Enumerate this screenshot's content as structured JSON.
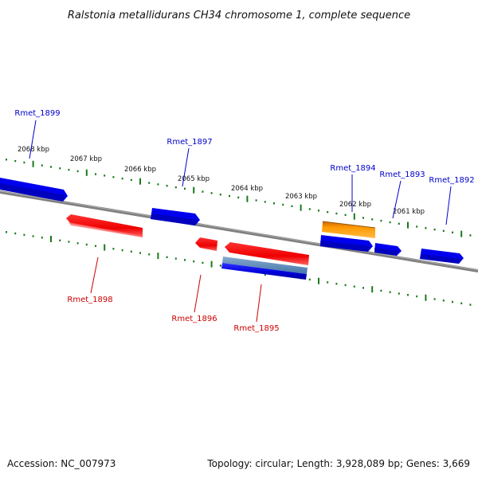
{
  "title": "Ralstonia metallidurans CH34 chromosome 1, complete sequence",
  "footer": {
    "accession": "Accession: NC_007973",
    "summary": "Topology: circular; Length: 3,928,089 bp; Genes: 3,669"
  },
  "colors": {
    "forward": "#0000ee",
    "reverse": "#ee0000",
    "other": "#ff9900",
    "backbone": "#808080",
    "ticks": "#1a7a1a"
  },
  "ticks": [
    {
      "label": "2068 kbp"
    },
    {
      "label": "2067 kbp"
    },
    {
      "label": "2066 kbp"
    },
    {
      "label": "2065 kbp"
    },
    {
      "label": "2064 kbp"
    },
    {
      "label": "2063 kbp"
    },
    {
      "label": "2062 kbp"
    },
    {
      "label": "2061 kbp"
    }
  ],
  "genes": [
    {
      "label": "Rmet_1899",
      "strand": "forward"
    },
    {
      "label": "Rmet_1898",
      "strand": "reverse"
    },
    {
      "label": "Rmet_1897",
      "strand": "forward"
    },
    {
      "label": "Rmet_1896",
      "strand": "reverse"
    },
    {
      "label": "Rmet_1895",
      "strand": "reverse"
    },
    {
      "label": "Rmet_1894",
      "strand": "other"
    },
    {
      "label": "Rmet_1893",
      "strand": "forward"
    },
    {
      "label": "Rmet_1892",
      "strand": "forward"
    }
  ]
}
